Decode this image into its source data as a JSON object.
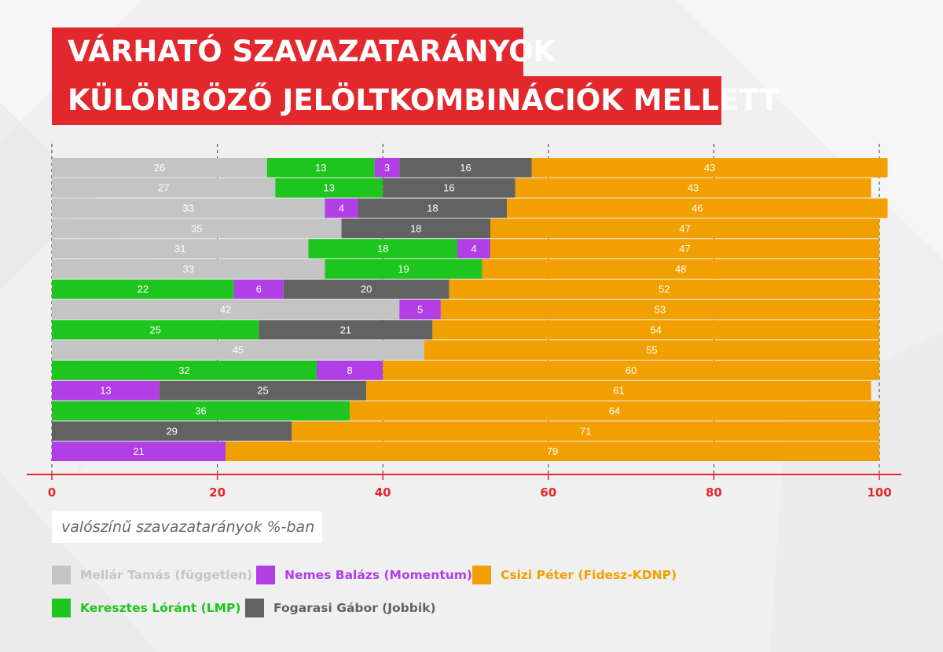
{
  "title": {
    "line1": "VÁRHATÓ SZAVAZATARÁNYOK",
    "line2": "KÜLÖNBÖZŐ JELÖLTKOMBINÁCIÓK MELLETT"
  },
  "axis_caption": "valószínű szavazatarányok %-ban",
  "colors": {
    "mellar": "#c4c4c4",
    "keresztes": "#1ec51e",
    "nemes": "#b23fe6",
    "fogarasi": "#626262",
    "csizi": "#f2a000",
    "title_bg": "#e3282d",
    "axis": "#e3282d"
  },
  "legend": [
    {
      "key": "mellar",
      "label": "Mellár Tamás (független)"
    },
    {
      "key": "nemes",
      "label": "Nemes Balázs (Momentum)"
    },
    {
      "key": "csizi",
      "label": "Csizi Péter (Fidesz-KDNP)"
    },
    {
      "key": "keresztes",
      "label": "Keresztes Lóránt (LMP)"
    },
    {
      "key": "fogarasi",
      "label": "Fogarasi Gábor (Jobbik)"
    }
  ],
  "chart_data": {
    "type": "bar",
    "orientation": "horizontal",
    "stacked": true,
    "xlim": [
      0,
      100
    ],
    "xticks": [
      0,
      20,
      40,
      60,
      80,
      100
    ],
    "grid": "vertical dashed",
    "series_order": [
      "mellar",
      "keresztes",
      "nemes",
      "fogarasi",
      "csizi"
    ],
    "rows": [
      {
        "mellar": 26,
        "keresztes": 13,
        "nemes": 3,
        "fogarasi": 16,
        "csizi": 43
      },
      {
        "mellar": 27,
        "keresztes": 13,
        "fogarasi": 16,
        "csizi": 43
      },
      {
        "mellar": 33,
        "nemes": 4,
        "fogarasi": 18,
        "csizi": 46
      },
      {
        "mellar": 35,
        "fogarasi": 18,
        "csizi": 47
      },
      {
        "mellar": 31,
        "keresztes": 18,
        "nemes": 4,
        "csizi": 47
      },
      {
        "mellar": 33,
        "keresztes": 19,
        "csizi": 48
      },
      {
        "keresztes": 22,
        "nemes": 6,
        "fogarasi": 20,
        "csizi": 52
      },
      {
        "mellar": 42,
        "nemes": 5,
        "csizi": 53
      },
      {
        "keresztes": 25,
        "fogarasi": 21,
        "csizi": 54
      },
      {
        "mellar": 45,
        "csizi": 55
      },
      {
        "keresztes": 32,
        "nemes": 8,
        "csizi": 60
      },
      {
        "nemes": 13,
        "fogarasi": 25,
        "csizi": 61
      },
      {
        "keresztes": 36,
        "csizi": 64
      },
      {
        "fogarasi": 29,
        "csizi": 71
      },
      {
        "nemes": 21,
        "csizi": 79
      }
    ]
  }
}
